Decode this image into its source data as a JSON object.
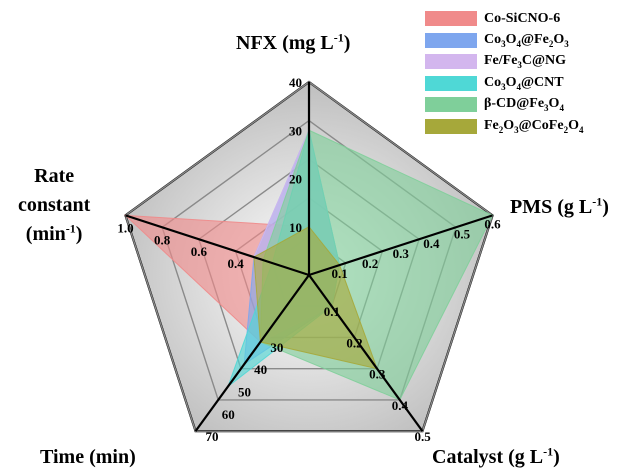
{
  "chart_data": {
    "type": "radar",
    "axes": [
      {
        "key": "nfx",
        "label_html": "NFX (mg L<sup>-1</sup>)",
        "ticks": [
          "10",
          "20",
          "30",
          "40"
        ],
        "max": 40
      },
      {
        "key": "pms",
        "label_html": "PMS (g L<sup>-1</sup>)",
        "ticks": [
          "0.1",
          "0.2",
          "0.3",
          "0.4",
          "0.5",
          "0.6"
        ],
        "max": 0.6
      },
      {
        "key": "catalyst",
        "label_html": "Catalyst (g L<sup>-1</sup>)",
        "ticks": [
          "0.1",
          "0.2",
          "0.3",
          "0.4",
          "0.5"
        ],
        "max": 0.5
      },
      {
        "key": "time",
        "label_html": "Time (min)",
        "ticks": [
          "30",
          "40",
          "50",
          "60",
          "70"
        ],
        "max": 70
      },
      {
        "key": "rate",
        "label_html": "Rate<br>constant<br>(min<sup>-1</sup>)",
        "ticks": [
          "0.4",
          "0.6",
          "0.8",
          "1.0"
        ],
        "max": 1.0
      }
    ],
    "series": [
      {
        "name": "Co-SiCNO-6",
        "name_html": "Co-SiCNO-6",
        "color": "#f08a8a",
        "values": {
          "nfx": 10,
          "pms": 0.1,
          "catalyst": 0.1,
          "time": 30,
          "rate": 1.0
        }
      },
      {
        "name": "Co3O4@Fe2O3",
        "name_html": "Co<sub>3</sub>O<sub>4</sub>@Fe<sub>2</sub>O<sub>3</sub>",
        "color": "#7ea6ee",
        "values": {
          "nfx": 30,
          "pms": 0.1,
          "catalyst": 0.1,
          "time": 40,
          "rate": 0.3
        }
      },
      {
        "name": "Fe/Fe3C@NG",
        "name_html": "Fe/Fe<sub>3</sub>C@NG",
        "color": "#d3b6ee",
        "values": {
          "nfx": 30,
          "pms": 0.1,
          "catalyst": 0.1,
          "time": 30,
          "rate": 0.3
        }
      },
      {
        "name": "Co3O4@CNT",
        "name_html": "Co<sub>3</sub>O<sub>4</sub>@CNT",
        "color": "#4fd8d6",
        "values": {
          "nfx": 30,
          "pms": 0.1,
          "catalyst": 0.1,
          "time": 50,
          "rate": 0.2
        }
      },
      {
        "name": "β-CD@Fe3O4",
        "name_html": "β-CD@Fe<sub>3</sub>O<sub>4</sub>",
        "color": "#7fcf9a",
        "values": {
          "nfx": 30,
          "pms": 0.6,
          "catalyst": 0.4,
          "time": 30,
          "rate": 0.25
        }
      },
      {
        "name": "Fe2O3@CoFe2O4",
        "name_html": "Fe<sub>2</sub>O<sub>3</sub>@CoFe<sub>2</sub>O<sub>4</sub>",
        "color": "#a6a83a",
        "values": {
          "nfx": 10,
          "pms": 0.1,
          "catalyst": 0.3,
          "time": 30,
          "rate": 0.3
        }
      }
    ],
    "grid": true,
    "legend_position": "top-right"
  }
}
